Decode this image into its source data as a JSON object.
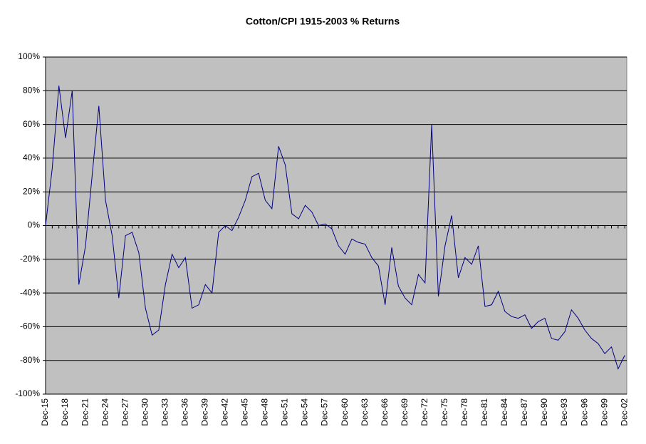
{
  "chart_data": {
    "type": "line",
    "title": "Cotton/CPI 1915-2003  % Returns",
    "categories": [
      "Dec-15",
      null,
      null,
      "Dec-18",
      null,
      null,
      "Dec-21",
      null,
      null,
      "Dec-24",
      null,
      null,
      "Dec-27",
      null,
      null,
      "Dec-30",
      null,
      null,
      "Dec-33",
      null,
      null,
      "Dec-36",
      null,
      null,
      "Dec-39",
      null,
      null,
      "Dec-42",
      null,
      null,
      "Dec-45",
      null,
      null,
      "Dec-48",
      null,
      null,
      "Dec-51",
      null,
      null,
      "Dec-54",
      null,
      null,
      "Dec-57",
      null,
      null,
      "Dec-60",
      null,
      null,
      "Dec-63",
      null,
      null,
      "Dec-66",
      null,
      null,
      "Dec-69",
      null,
      null,
      "Dec-72",
      null,
      null,
      "Dec-75",
      null,
      null,
      "Dec-78",
      null,
      null,
      "Dec-81",
      null,
      null,
      "Dec-84",
      null,
      null,
      "Dec-87",
      null,
      null,
      "Dec-90",
      null,
      null,
      "Dec-93",
      null,
      null,
      "Dec-96",
      null,
      null,
      "Dec-99",
      null,
      null,
      "Dec-02"
    ],
    "series": [
      {
        "color": "#000080",
        "values": [
          0,
          34,
          83,
          52,
          80,
          -35,
          -12,
          30,
          71,
          15,
          -6,
          -43,
          -6,
          -4,
          -16,
          -49,
          -65,
          -62,
          -35,
          -17,
          -25,
          -19,
          -49,
          -47,
          -35,
          -40,
          -4,
          0,
          -3,
          5,
          15,
          29,
          31,
          15,
          10,
          47,
          36,
          7,
          4,
          12,
          8,
          0,
          1,
          -2,
          -12,
          -17,
          -8,
          -10,
          -11,
          -19,
          -24,
          -47,
          -13,
          -36,
          -43,
          -47,
          -29,
          -34,
          60,
          -42,
          -12,
          6,
          -31,
          -19,
          -23,
          -12,
          -48,
          -47,
          -39,
          -51,
          -54,
          -55,
          -53,
          -61,
          -57,
          -55,
          -67,
          -68,
          -63,
          -50,
          -55,
          -62,
          -67,
          -70,
          -76,
          -72,
          -85,
          -77
        ]
      }
    ],
    "ylim": [
      -100,
      100
    ],
    "yticks": [
      {
        "value": -100,
        "label": "-100%"
      },
      {
        "value": -80,
        "label": "-80%"
      },
      {
        "value": -60,
        "label": "-60%"
      },
      {
        "value": -40,
        "label": "-40%"
      },
      {
        "value": -20,
        "label": "-20%"
      },
      {
        "value": 0,
        "label": "0%"
      },
      {
        "value": 20,
        "label": "20%"
      },
      {
        "value": 40,
        "label": "40%"
      },
      {
        "value": 60,
        "label": "60%"
      },
      {
        "value": 80,
        "label": "80%"
      },
      {
        "value": 100,
        "label": "100%"
      }
    ],
    "grid": true,
    "plot_background": "#c0c0c0"
  }
}
